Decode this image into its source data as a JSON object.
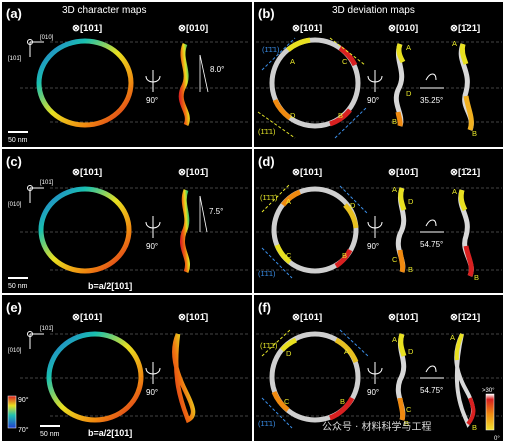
{
  "panels": {
    "a": {
      "label": "(a)",
      "title": "3D character maps",
      "zone1": "⊗[101]",
      "zone2": "⊗[010]",
      "axis_top": "[010]",
      "axis_left": "[101̄]",
      "rot_angle": "90°",
      "tilt": "8.0°",
      "scale": "50 nm"
    },
    "b": {
      "label": "(b)",
      "title": "3D deviation maps",
      "zone1": "⊗[101]",
      "zone2": "⊗[010]",
      "zone3": "⊗[1̄21]",
      "rot1": "90°",
      "rot2": "35.25°",
      "planes": [
        "(1̄1̄1)",
        "(1̄1̄1)"
      ],
      "seg_labels": [
        "A",
        "C",
        "D",
        "B",
        "A",
        "D",
        "B",
        "A",
        "B"
      ]
    },
    "c": {
      "label": "(c)",
      "zone1": "⊗[101]",
      "zone2": "⊗[101̄]",
      "axis_top": "[101̄]",
      "axis_left": "[010]",
      "rot_angle": "90°",
      "tilt": "7.5°",
      "scale": "50 nm",
      "burgers": "b=a/2[101]"
    },
    "d": {
      "label": "(d)",
      "zone1": "⊗[101]",
      "zone2": "⊗[101̄]",
      "zone3": "⊗[1̄21]",
      "rot1": "90°",
      "rot2": "54.75°",
      "planes": [
        "(1̄1̄1̄)",
        "(1̄1̄1)"
      ],
      "seg_labels": [
        "A",
        "D",
        "C",
        "B",
        "A",
        "D",
        "C",
        "B",
        "A",
        "B"
      ]
    },
    "e": {
      "label": "(e)",
      "zone1": "⊗[101]",
      "zone2": "⊗[101̄]",
      "axis_top": "[101̄]",
      "axis_left": "[010]",
      "rot_angle": "90°",
      "scale": "50 nm",
      "burgers": "b=a/2[101]",
      "colorbar_top": "90°",
      "colorbar_bottom": "70°"
    },
    "f": {
      "label": "(f)",
      "zone1": "⊗[101]",
      "zone2": "⊗[101̄]",
      "zone3": "⊗[1̄21]",
      "rot1": "90°",
      "rot2": "54.75°",
      "planes": [
        "(1̄1̄1̄)",
        "(1̄1̄1)"
      ],
      "seg_labels": [
        "D",
        "A",
        "C",
        "B",
        "A",
        "D",
        "C",
        "B",
        "A",
        "B"
      ],
      "colorbar_top": ">30°",
      "colorbar_bottom": "0°"
    }
  },
  "burgers_top": "b=a/2[101]",
  "watermark": "公众号 · 材料科学与工程",
  "colors": {
    "background": "#000000",
    "plane_yellow": "#e8e82a",
    "plane_blue": "#3a8ee8"
  }
}
